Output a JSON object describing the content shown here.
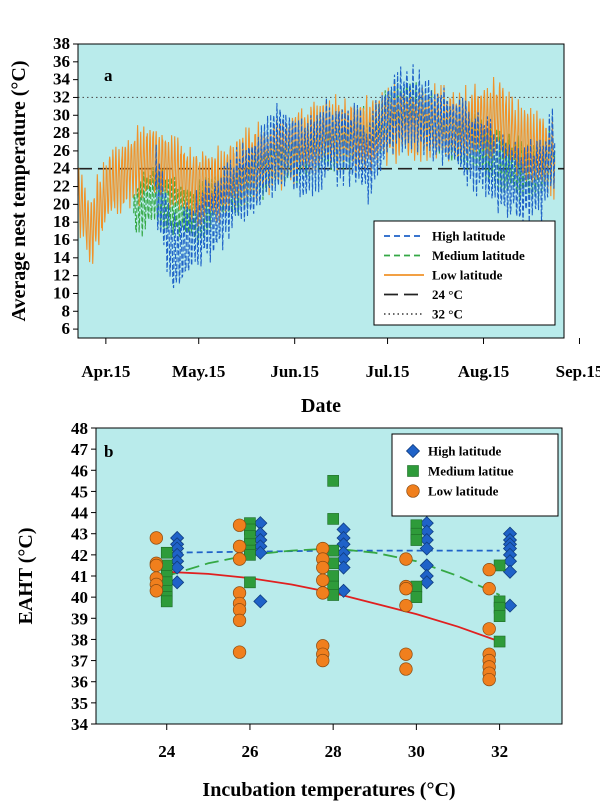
{
  "chart_data": [
    {
      "type": "line",
      "panel_label": "a",
      "xlabel": "Date",
      "ylabel": "Average nest temperature (°C)",
      "x_tick_labels": [
        "Apr.15",
        "May.15",
        "Jun.15",
        "Jul.15",
        "Aug.15",
        "Sep.15"
      ],
      "x_tick_dates": [
        "2015-04-15",
        "2015-05-15",
        "2015-06-15",
        "2015-07-15",
        "2015-08-15",
        "2015-09-15"
      ],
      "x_range": [
        "2015-04-06",
        "2015-09-10"
      ],
      "ylim": [
        5,
        38
      ],
      "y_ticks": [
        6,
        8,
        10,
        12,
        14,
        16,
        18,
        20,
        22,
        24,
        26,
        28,
        30,
        32,
        34,
        36,
        38
      ],
      "legend_position": "bottom-right",
      "reference_lines": [
        {
          "name": "24 °C",
          "value": 24,
          "style": "long-dash",
          "color": "#222222"
        },
        {
          "name": "32 °C",
          "value": 32,
          "style": "dotted",
          "color": "#555555"
        }
      ],
      "series": [
        {
          "name": "High latitude",
          "color": "#1f62c8",
          "style": "dashed",
          "x": [
            "2015-05-01",
            "2015-05-07",
            "2015-05-14",
            "2015-05-21",
            "2015-05-28",
            "2015-06-04",
            "2015-06-11",
            "2015-06-18",
            "2015-06-25",
            "2015-07-02",
            "2015-07-09",
            "2015-07-16",
            "2015-07-23",
            "2015-07-30",
            "2015-08-06",
            "2015-08-13",
            "2015-08-20",
            "2015-08-27",
            "2015-09-03",
            "2015-09-07"
          ],
          "y": [
            22,
            14,
            17,
            19,
            22,
            24,
            27,
            25,
            27,
            27,
            25,
            30,
            31,
            29,
            28,
            26,
            24,
            22,
            23,
            27
          ]
        },
        {
          "name": "Medium latitude",
          "color": "#35a845",
          "style": "dashed",
          "x": [
            "2015-04-24",
            "2015-04-30",
            "2015-05-07",
            "2015-05-14",
            "2015-05-21",
            "2015-05-28",
            "2015-06-04",
            "2015-06-11",
            "2015-06-18",
            "2015-06-25",
            "2015-07-02",
            "2015-07-09",
            "2015-07-16",
            "2015-07-23",
            "2015-07-30",
            "2015-08-06",
            "2015-08-13",
            "2015-08-20",
            "2015-08-27",
            "2015-09-03",
            "2015-09-07"
          ],
          "y": [
            19,
            21,
            20,
            19,
            21,
            22,
            24,
            25,
            26,
            27,
            27,
            28,
            30,
            31,
            29,
            28,
            27,
            25,
            24,
            24,
            26
          ]
        },
        {
          "name": "Low latitude",
          "color": "#f0922a",
          "style": "solid",
          "x": [
            "2015-04-06",
            "2015-04-10",
            "2015-04-16",
            "2015-04-23",
            "2015-04-30",
            "2015-05-07",
            "2015-05-14",
            "2015-05-21",
            "2015-05-28",
            "2015-06-04",
            "2015-06-11",
            "2015-06-18",
            "2015-06-25",
            "2015-07-02",
            "2015-07-09",
            "2015-07-16",
            "2015-07-23",
            "2015-07-30",
            "2015-08-06",
            "2015-08-13",
            "2015-08-20",
            "2015-08-27",
            "2015-09-03",
            "2015-09-07"
          ],
          "y": [
            21,
            17,
            22,
            24,
            25,
            24,
            22,
            22,
            24,
            25,
            26,
            27,
            28,
            28,
            28,
            29,
            29,
            29,
            29,
            29,
            30,
            27,
            26,
            25
          ]
        }
      ],
      "legend": [
        "High latitude",
        "Medium latitude",
        "Low latitude",
        "24 °C",
        "32 °C"
      ]
    },
    {
      "type": "scatter",
      "panel_label": "b",
      "xlabel": "Incubation temperatures (°C)",
      "ylabel": "EAHT (°C)",
      "x_ticks": [
        24,
        26,
        28,
        30,
        32
      ],
      "xlim": [
        22.3,
        33.5
      ],
      "ylim": [
        34,
        48
      ],
      "y_ticks": [
        34,
        35,
        36,
        37,
        38,
        39,
        40,
        41,
        42,
        43,
        44,
        45,
        46,
        47,
        48
      ],
      "legend_position": "top-right",
      "legend": [
        "High latitude",
        "Medium latitue",
        "Low latitude"
      ],
      "series": [
        {
          "name": "High latitude",
          "marker": "diamond",
          "color": "#1f62c8",
          "points": [
            [
              24.25,
              42.8
            ],
            [
              24.25,
              42.5
            ],
            [
              24.25,
              42.3
            ],
            [
              24.25,
              42.0
            ],
            [
              24.25,
              41.7
            ],
            [
              24.25,
              41.4
            ],
            [
              24.25,
              40.7
            ],
            [
              26.25,
              43.5
            ],
            [
              26.25,
              43.0
            ],
            [
              26.25,
              42.7
            ],
            [
              26.25,
              42.4
            ],
            [
              26.25,
              42.1
            ],
            [
              26.25,
              39.8
            ],
            [
              28.25,
              43.2
            ],
            [
              28.25,
              42.8
            ],
            [
              28.25,
              42.5
            ],
            [
              28.25,
              42.1
            ],
            [
              28.25,
              41.8
            ],
            [
              28.25,
              41.4
            ],
            [
              28.25,
              40.3
            ],
            [
              30.25,
              43.5
            ],
            [
              30.25,
              43.1
            ],
            [
              30.25,
              42.7
            ],
            [
              30.25,
              42.3
            ],
            [
              30.25,
              41.5
            ],
            [
              30.25,
              41.0
            ],
            [
              30.25,
              40.7
            ],
            [
              32.25,
              43.0
            ],
            [
              32.25,
              42.7
            ],
            [
              32.25,
              42.5
            ],
            [
              32.25,
              42.3
            ],
            [
              32.25,
              42.0
            ],
            [
              32.25,
              41.7
            ],
            [
              32.25,
              41.2
            ],
            [
              32.25,
              39.6
            ]
          ],
          "fit_line": {
            "style": "dashed",
            "color": "#1f62c8",
            "x": [
              24,
              26,
              28,
              30,
              32
            ],
            "y": [
              42.1,
              42.15,
              42.2,
              42.2,
              42.2
            ]
          }
        },
        {
          "name": "Medium latitue",
          "marker": "square",
          "color": "#2e9b3a",
          "points": [
            [
              24.0,
              42.1
            ],
            [
              24.0,
              41.5
            ],
            [
              24.0,
              41.0
            ],
            [
              24.0,
              40.7
            ],
            [
              24.0,
              40.3
            ],
            [
              24.0,
              40.0
            ],
            [
              24.0,
              39.8
            ],
            [
              26.0,
              43.5
            ],
            [
              26.0,
              43.2
            ],
            [
              26.0,
              42.9
            ],
            [
              26.0,
              42.5
            ],
            [
              26.0,
              42.2
            ],
            [
              26.0,
              42.0
            ],
            [
              26.0,
              40.7
            ],
            [
              28.0,
              45.5
            ],
            [
              28.0,
              43.7
            ],
            [
              28.0,
              42.2
            ],
            [
              28.0,
              41.6
            ],
            [
              28.0,
              41.0
            ],
            [
              28.0,
              40.5
            ],
            [
              28.0,
              40.1
            ],
            [
              30.0,
              43.4
            ],
            [
              30.0,
              43.0
            ],
            [
              30.0,
              42.7
            ],
            [
              30.0,
              40.5
            ],
            [
              30.0,
              40.0
            ],
            [
              32.0,
              41.5
            ],
            [
              32.0,
              39.8
            ],
            [
              32.0,
              39.5
            ],
            [
              32.0,
              39.1
            ],
            [
              32.0,
              37.9
            ]
          ],
          "fit_line": {
            "style": "long-dash",
            "color": "#35a845",
            "x": [
              24,
              25,
              26,
              27,
              28,
              29,
              30,
              31,
              32
            ],
            "y": [
              41.0,
              41.6,
              42.0,
              42.2,
              42.3,
              42.1,
              41.7,
              41.0,
              40.1
            ]
          }
        },
        {
          "name": "Low latitude",
          "marker": "circle",
          "color": "#f07f1d",
          "points": [
            [
              23.75,
              42.8
            ],
            [
              23.75,
              41.6
            ],
            [
              23.75,
              41.5
            ],
            [
              23.75,
              40.9
            ],
            [
              23.75,
              40.6
            ],
            [
              23.75,
              40.3
            ],
            [
              25.75,
              43.4
            ],
            [
              25.75,
              42.4
            ],
            [
              25.75,
              41.8
            ],
            [
              25.75,
              40.2
            ],
            [
              25.75,
              39.7
            ],
            [
              25.75,
              39.4
            ],
            [
              25.75,
              38.9
            ],
            [
              25.75,
              37.4
            ],
            [
              27.75,
              42.3
            ],
            [
              27.75,
              41.8
            ],
            [
              27.75,
              41.4
            ],
            [
              27.75,
              40.8
            ],
            [
              27.75,
              40.2
            ],
            [
              27.75,
              37.7
            ],
            [
              27.75,
              37.3
            ],
            [
              27.75,
              37.0
            ],
            [
              29.75,
              41.8
            ],
            [
              29.75,
              40.5
            ],
            [
              29.75,
              40.4
            ],
            [
              29.75,
              39.6
            ],
            [
              29.75,
              37.3
            ],
            [
              29.75,
              36.6
            ],
            [
              31.75,
              41.3
            ],
            [
              31.75,
              40.4
            ],
            [
              31.75,
              38.5
            ],
            [
              31.75,
              37.3
            ],
            [
              31.75,
              37.0
            ],
            [
              31.75,
              36.7
            ],
            [
              31.75,
              36.4
            ],
            [
              31.75,
              36.1
            ]
          ],
          "fit_line": {
            "style": "solid",
            "color": "#e02020",
            "x": [
              24,
              25,
              26,
              27,
              28,
              29,
              30,
              31,
              32
            ],
            "y": [
              41.2,
              41.1,
              40.9,
              40.6,
              40.2,
              39.7,
              39.2,
              38.6,
              37.9
            ]
          }
        }
      ]
    }
  ]
}
